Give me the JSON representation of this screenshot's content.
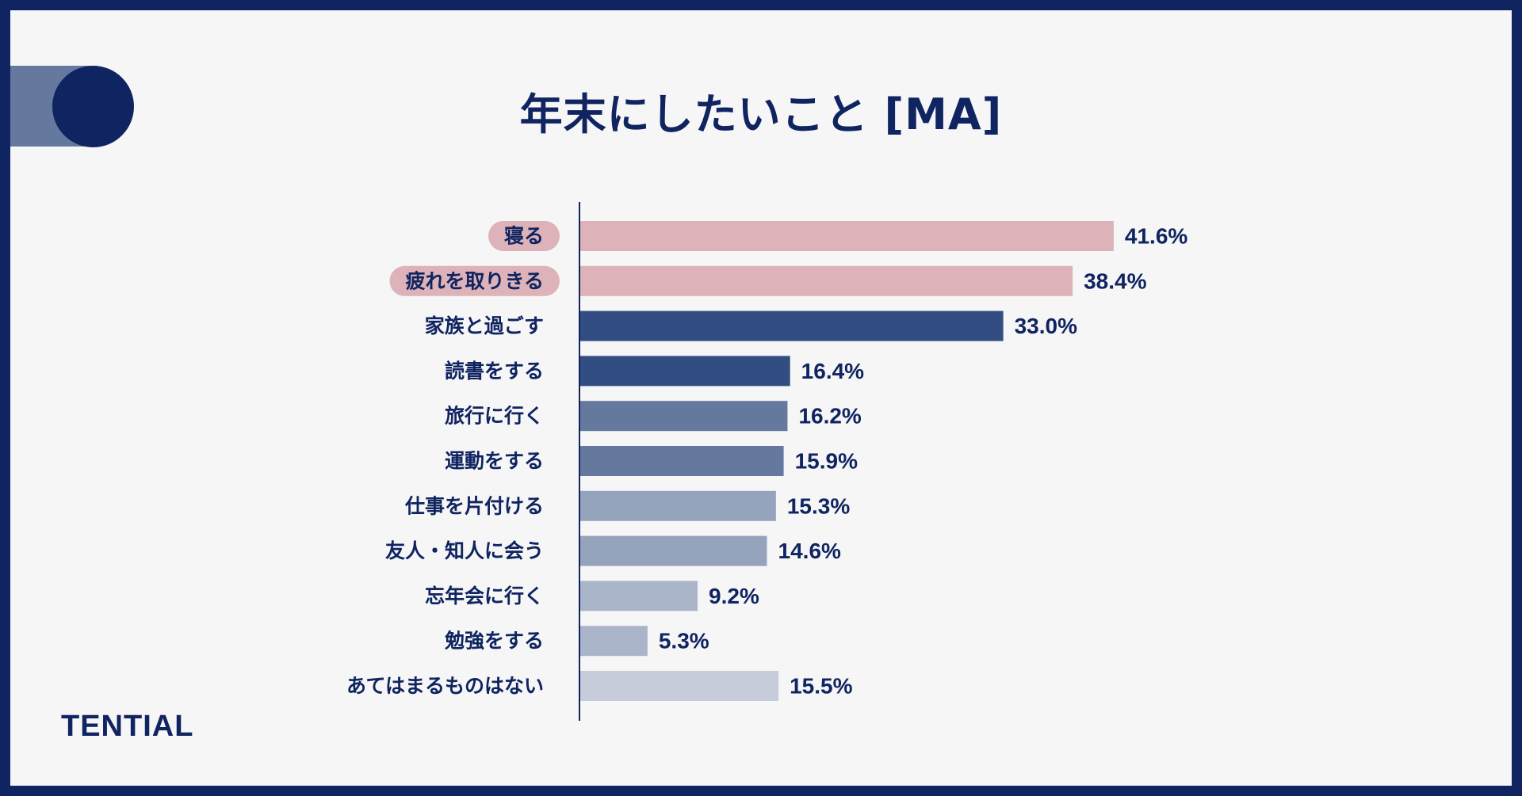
{
  "title": "年末にしたいこと [MA]",
  "brand": "TENTIAL",
  "chart_data": {
    "type": "bar",
    "orientation": "horizontal",
    "title": "年末にしたいこと [MA]",
    "xlabel": "",
    "ylabel": "",
    "unit": "%",
    "xlim": [
      0,
      42
    ],
    "grid": false,
    "legend": "none",
    "categories": [
      "寝る",
      "疲れを取りきる",
      "家族と過ごす",
      "読書をする",
      "旅行に行く",
      "運動をする",
      "仕事を片付ける",
      "友人・知人に会う",
      "忘年会に行く",
      "勉強をする",
      "あてはまるものはない"
    ],
    "values": [
      41.6,
      38.4,
      33.0,
      16.4,
      16.2,
      15.9,
      15.3,
      14.6,
      9.2,
      5.3,
      15.5
    ],
    "value_labels": [
      "41.6%",
      "38.4%",
      "33.0%",
      "16.4%",
      "16.2%",
      "15.9%",
      "15.3%",
      "14.6%",
      "9.2%",
      "5.3%",
      "15.5%"
    ],
    "highlighted": [
      true,
      true,
      false,
      false,
      false,
      false,
      false,
      false,
      false,
      false,
      false
    ],
    "colors": [
      "#ddb2b8",
      "#ddb2b8",
      "#314d81",
      "#314d81",
      "#65799f",
      "#65799f",
      "#96a3bd",
      "#96a3bd",
      "#abb5c9",
      "#abb5c9",
      "#c6ccd9"
    ],
    "highlight_label_bg": "#ddb2b8",
    "axis_color": "#0f2460",
    "text_color": "#0f2460"
  }
}
